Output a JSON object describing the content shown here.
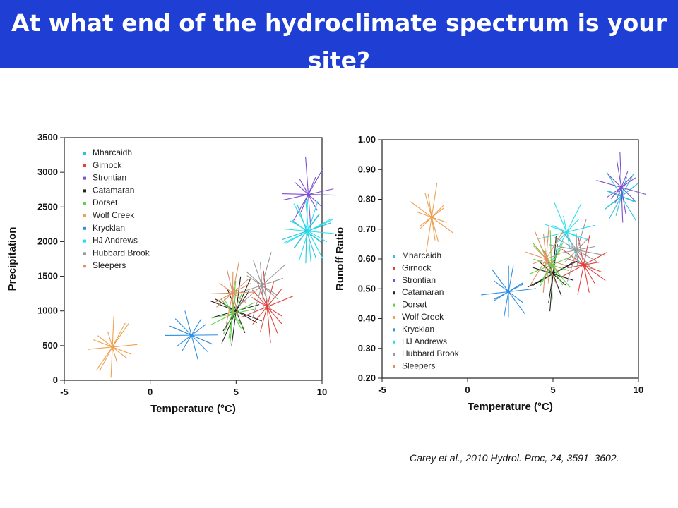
{
  "slide": {
    "title": "At what end of the hydroclimate spectrum is your site?",
    "citation": "Carey et al., 2010 Hydrol. Proc, 24, 3591–3602."
  },
  "chart_data": [
    {
      "type": "scatter",
      "xlabel": "Temperature (°C)",
      "ylabel": "Precipitation",
      "xlim": [
        -5,
        10
      ],
      "ylim": [
        0,
        3500
      ],
      "xticks": [
        "-5",
        "0",
        "5",
        "10"
      ],
      "yticks": [
        "0",
        "500",
        "1000",
        "1500",
        "2000",
        "2500",
        "3000",
        "3500"
      ],
      "legend_position": "top-left",
      "series": [
        {
          "name": "Mharcaidh",
          "color": "#2ec4d6",
          "x": 9.1,
          "y": 2150
        },
        {
          "name": "Girnock",
          "color": "#e0403a",
          "x": 6.8,
          "y": 1060
        },
        {
          "name": "Strontian",
          "color": "#7a4fd0",
          "x": 9.2,
          "y": 2680
        },
        {
          "name": "Catamaran",
          "color": "#222222",
          "x": 5.0,
          "y": 1000
        },
        {
          "name": "Dorset",
          "color": "#5fd14a",
          "x": 4.8,
          "y": 960
        },
        {
          "name": "Wolf Creek",
          "color": "#f0a050",
          "x": -2.2,
          "y": 480
        },
        {
          "name": "Krycklan",
          "color": "#2f8fe0",
          "x": 2.4,
          "y": 650
        },
        {
          "name": "HJ Andrews",
          "color": "#22e0f0",
          "x": 9.2,
          "y": 2150
        },
        {
          "name": "Hubbard Brook",
          "color": "#999999",
          "x": 6.5,
          "y": 1370
        },
        {
          "name": "Sleepers",
          "color": "#e09060",
          "x": 4.8,
          "y": 1260
        }
      ]
    },
    {
      "type": "scatter",
      "xlabel": "Temperature (°C)",
      "ylabel": "Runoff Ratio",
      "xlim": [
        -5,
        10
      ],
      "ylim": [
        0.2,
        1.0
      ],
      "xticks": [
        "-5",
        "0",
        "5",
        "10"
      ],
      "yticks": [
        "0.20",
        "0.30",
        "0.40",
        "0.50",
        "0.60",
        "0.70",
        "0.80",
        "0.90",
        "1.00"
      ],
      "legend_position": "bottom-left",
      "series": [
        {
          "name": "Mharcaidh",
          "color": "#2ec4d6",
          "x": 9.0,
          "y": 0.81
        },
        {
          "name": "Girnock",
          "color": "#e0403a",
          "x": 6.8,
          "y": 0.58
        },
        {
          "name": "Strontian",
          "color": "#7a4fd0",
          "x": 9.0,
          "y": 0.84
        },
        {
          "name": "Catamaran",
          "color": "#222222",
          "x": 5.0,
          "y": 0.55
        },
        {
          "name": "Dorset",
          "color": "#5fd14a",
          "x": 4.9,
          "y": 0.58
        },
        {
          "name": "Wolf Creek",
          "color": "#f0a050",
          "x": -2.1,
          "y": 0.74
        },
        {
          "name": "Krycklan",
          "color": "#2f8fe0",
          "x": 2.4,
          "y": 0.49
        },
        {
          "name": "HJ Andrews",
          "color": "#22e0f0",
          "x": 5.8,
          "y": 0.69
        },
        {
          "name": "Hubbard Brook",
          "color": "#999999",
          "x": 6.4,
          "y": 0.63
        },
        {
          "name": "Sleepers",
          "color": "#e09060",
          "x": 4.6,
          "y": 0.6
        }
      ]
    }
  ]
}
